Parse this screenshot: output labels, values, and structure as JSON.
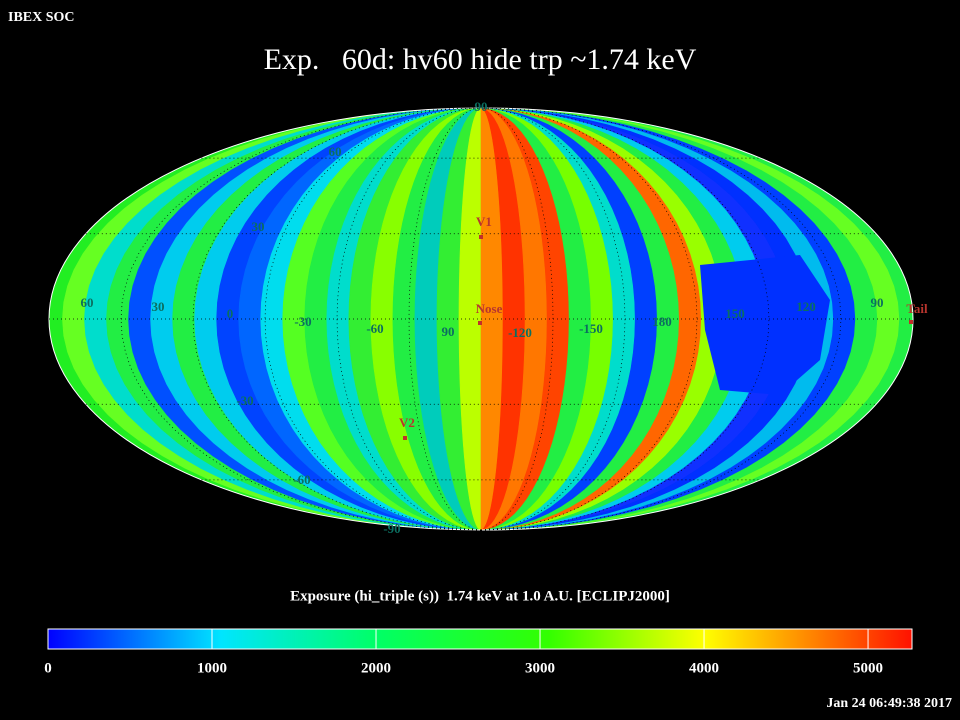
{
  "header": {
    "source": "IBEX SOC",
    "title": "Exp.   60d: hv60 hide trp ~1.74 keV"
  },
  "map": {
    "grid_labels": [
      "90",
      "60",
      "30",
      "60",
      "30",
      "0",
      "-30",
      "-60",
      "90",
      "-120",
      "-150",
      "180",
      "150",
      "120",
      "90",
      "-30",
      "-60",
      "-90"
    ],
    "markers": [
      "V1",
      "Nose",
      "V2",
      "Tail"
    ]
  },
  "colorbar": {
    "label": "Exposure (hi_triple (s))  1.74 keV at 1.0 A.U. [ECLIPJ2000]",
    "range": [
      0,
      5268
    ],
    "ticks": [
      0,
      1000,
      2000,
      3000,
      4000,
      5000
    ]
  },
  "footer": {
    "timestamp": "Jan 24 06:49:38 2017"
  }
}
